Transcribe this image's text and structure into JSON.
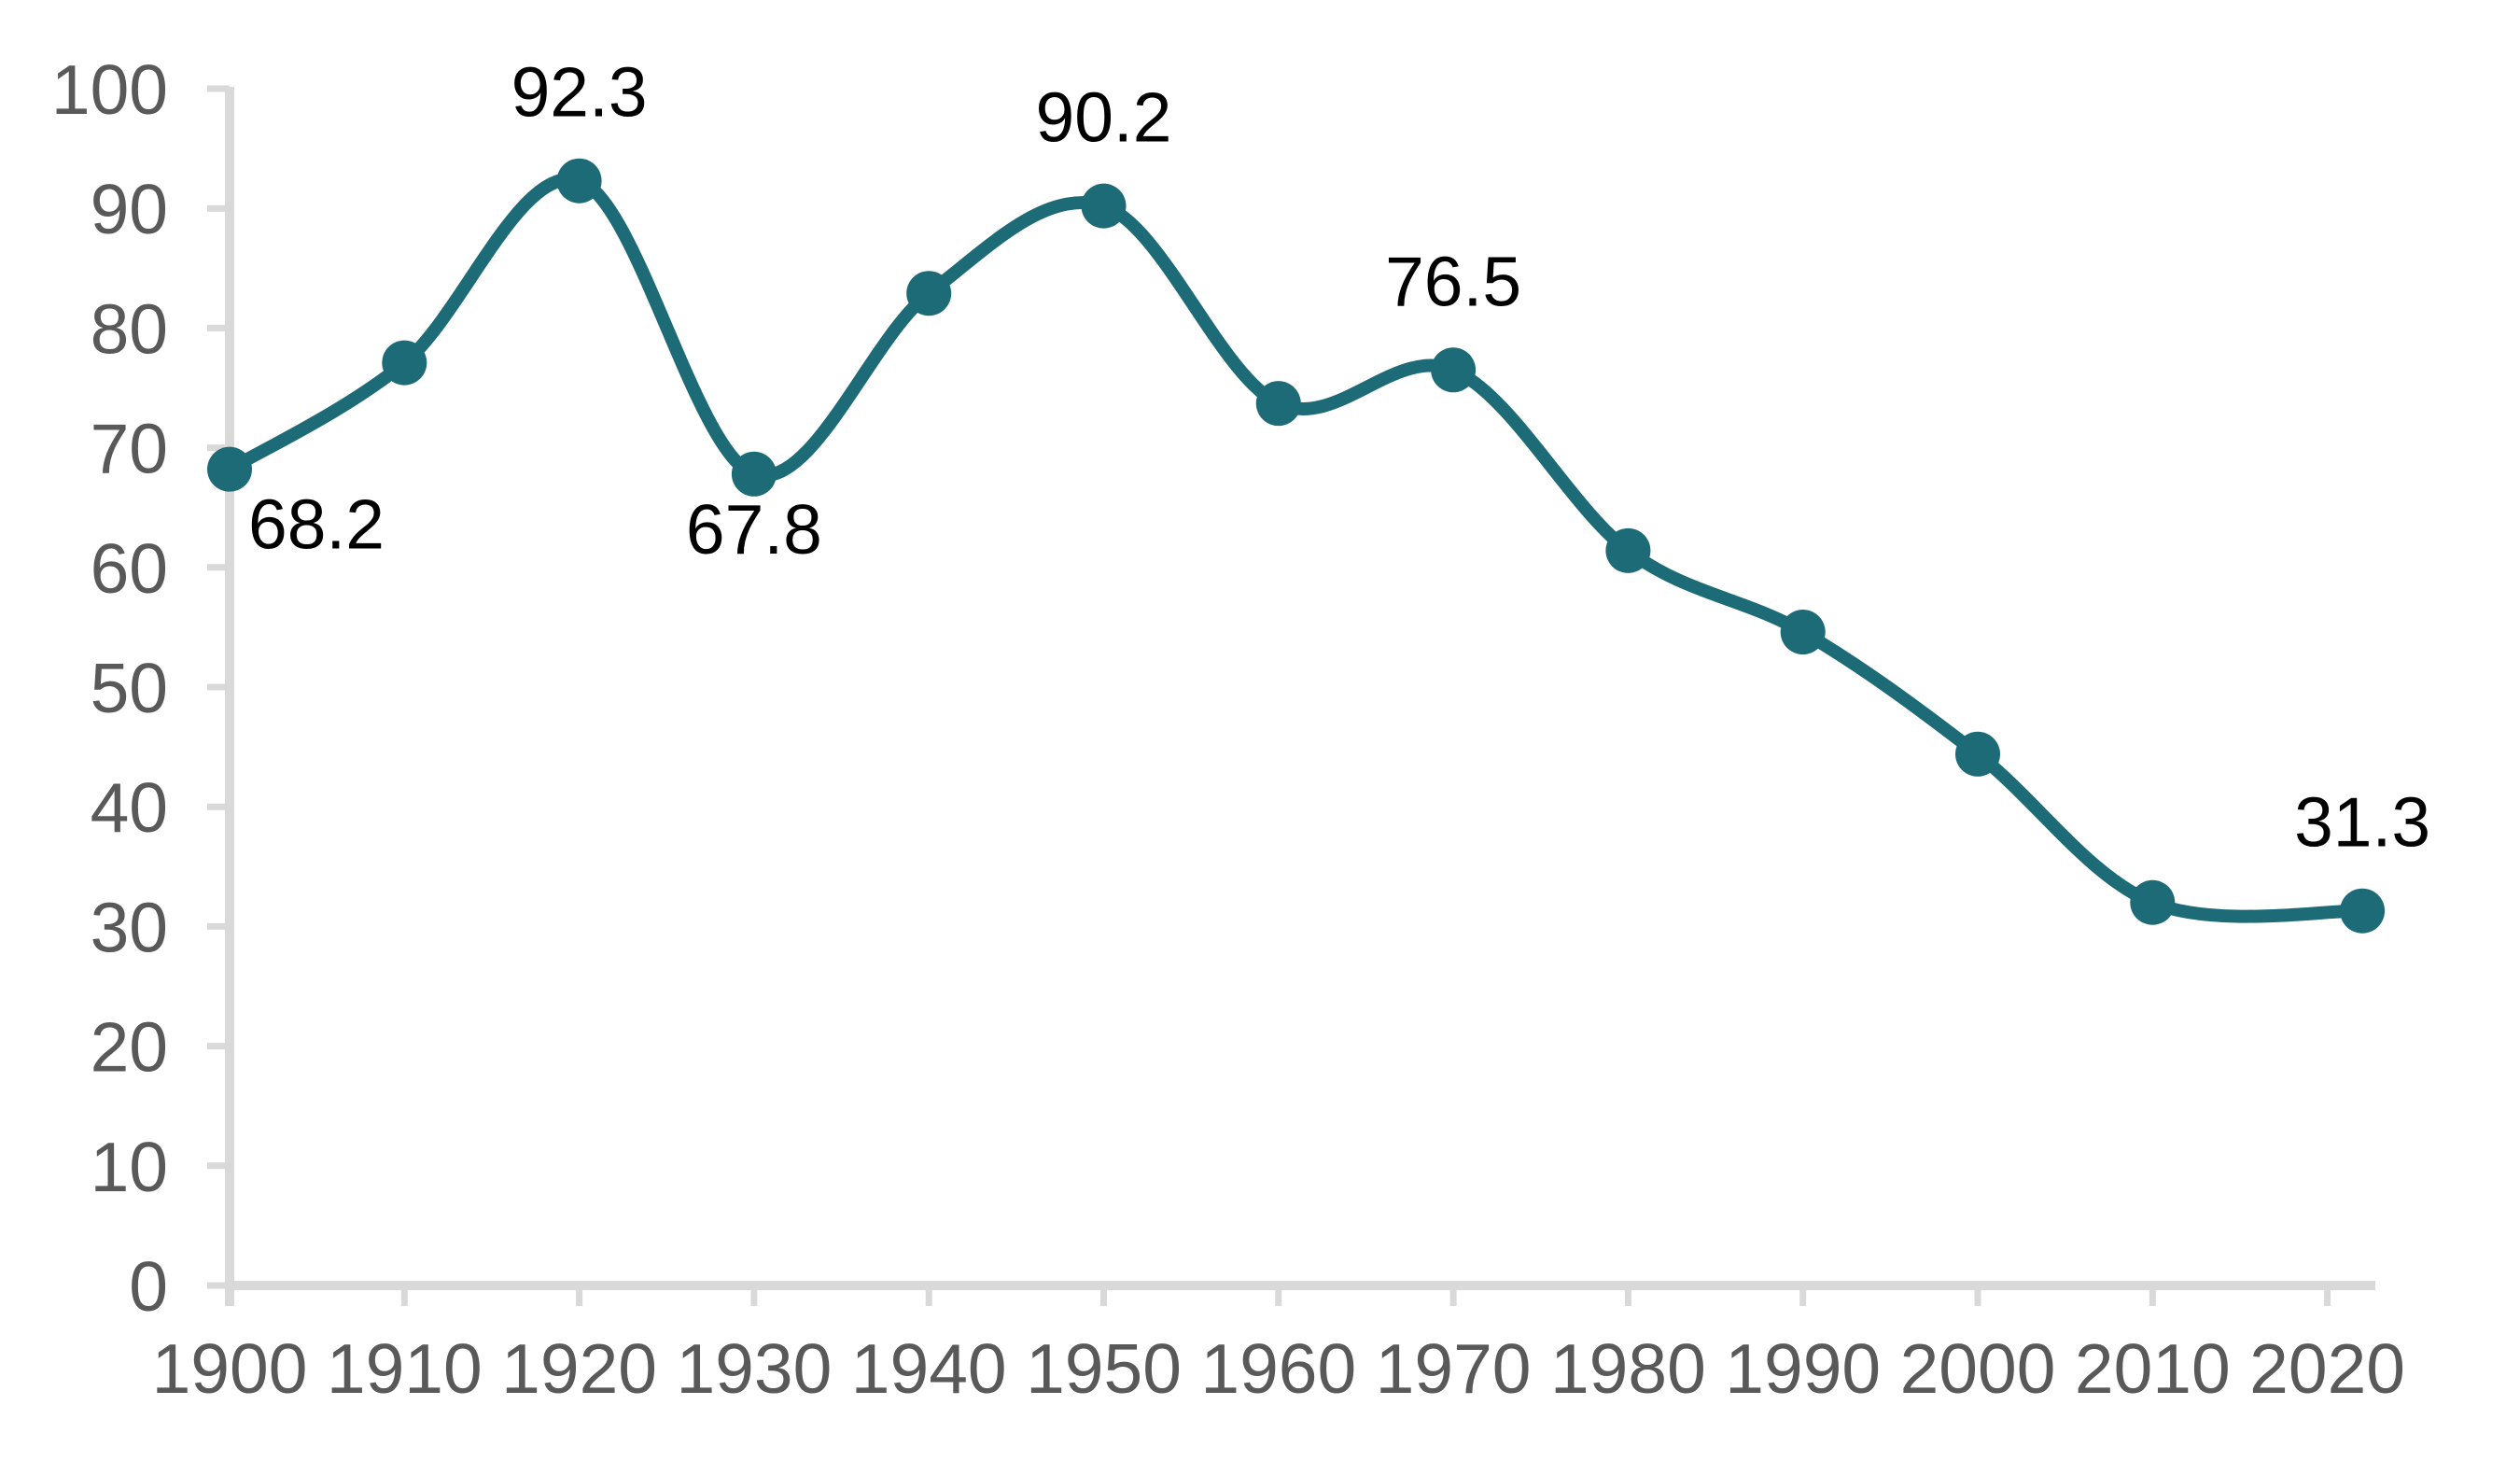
{
  "chart_data": {
    "type": "line",
    "title": "",
    "x": [
      1900,
      1910,
      1920,
      1930,
      1940,
      1950,
      1960,
      1970,
      1980,
      1990,
      2000,
      2010,
      2022
    ],
    "values": [
      68.2,
      77.1,
      92.3,
      67.8,
      82.9,
      90.2,
      73.7,
      76.5,
      61.4,
      54.6,
      44.4,
      32.0,
      31.3
    ],
    "series_name": "",
    "point_labels": [
      {
        "year": 1900,
        "text": "68.2",
        "pos": "below-right"
      },
      {
        "year": 1920,
        "text": "92.3",
        "pos": "above"
      },
      {
        "year": 1930,
        "text": "67.8",
        "pos": "below"
      },
      {
        "year": 1950,
        "text": "90.2",
        "pos": "above"
      },
      {
        "year": 1970,
        "text": "76.5",
        "pos": "above"
      },
      {
        "year": 2022,
        "text": "31.3",
        "pos": "above"
      }
    ],
    "x_tick_labels": [
      "1900",
      "1910",
      "1920",
      "1930",
      "1940",
      "1950",
      "1960",
      "1970",
      "1980",
      "1990",
      "2000",
      "2010",
      "2020"
    ],
    "x_ticks": [
      1900,
      1910,
      1920,
      1930,
      1940,
      1950,
      1960,
      1970,
      1980,
      1990,
      2000,
      2010,
      2020
    ],
    "y_tick_labels": [
      "0",
      "10",
      "20",
      "30",
      "40",
      "50",
      "60",
      "70",
      "80",
      "90",
      "100"
    ],
    "y_ticks": [
      0,
      10,
      20,
      30,
      40,
      50,
      60,
      70,
      80,
      90,
      100
    ],
    "ylim": [
      0,
      100
    ],
    "xlim": [
      1900,
      2022.7
    ],
    "grid": false,
    "legend": null,
    "smooth": true,
    "colors": {
      "line": "#1E6B78",
      "marker": "#1E6B78",
      "axis": "#D9D9D9",
      "tick_label": "#595959",
      "data_label": "#000000",
      "background": "#FFFFFF"
    }
  }
}
